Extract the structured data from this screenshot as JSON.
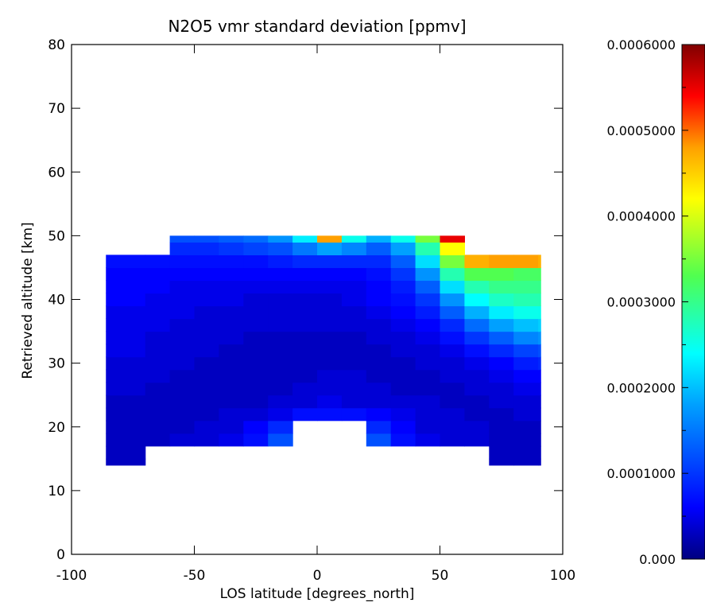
{
  "chart_data": [
    {
      "type": "heatmap",
      "title": "N2O5 vmr standard deviation [ppmv]",
      "xlabel": "LOS latitude [degrees_north]",
      "ylabel": "Retrieved altitude [km]",
      "xlim": [
        -100,
        100
      ],
      "ylim": [
        0,
        80
      ],
      "x_ticks": [
        "-100",
        "-50",
        "0",
        "50",
        "100"
      ],
      "x_tick_values": [
        -100,
        -50,
        0,
        50,
        100
      ],
      "y_ticks": [
        "0",
        "10",
        "20",
        "30",
        "40",
        "50",
        "60",
        "70",
        "80"
      ],
      "y_tick_values": [
        0,
        10,
        20,
        30,
        40,
        50,
        60,
        70,
        80
      ],
      "colorscale": "rainbow (dark blue to dark red)",
      "colorbar": {
        "range": [
          0,
          0.0006
        ],
        "labels": [
          "0.000",
          "0.0001000",
          "0.0002000",
          "0.0003000",
          "0.0004000",
          "0.0005000",
          "0.0006000"
        ],
        "label_values": [
          0,
          0.0001,
          0.0002,
          0.0003,
          0.0004,
          0.0005,
          0.0006
        ]
      },
      "lat": [
        -80,
        -70,
        -60,
        -50,
        -40,
        -30,
        -20,
        -10,
        0,
        10,
        20,
        30,
        40,
        50,
        60,
        70,
        80,
        90
      ],
      "lat_edges": [
        -86,
        -70,
        -60,
        -50,
        -40,
        -30,
        -20,
        -10,
        0,
        10,
        20,
        30,
        40,
        50,
        60,
        70,
        80,
        90,
        91
      ],
      "alt": [
        14,
        16,
        18,
        20,
        22,
        24,
        26,
        28,
        30,
        32,
        34,
        36,
        38,
        40,
        42,
        44,
        46,
        48,
        50
      ],
      "alt_edges": [
        14,
        15,
        17,
        19,
        21,
        23,
        25,
        27,
        29,
        31,
        33,
        35,
        37,
        39,
        41,
        43,
        45,
        47,
        49,
        50
      ],
      "values": [
        [
          3e-05,
          null,
          null,
          null,
          null,
          null,
          null,
          null,
          null,
          null,
          null,
          null,
          null,
          null,
          null,
          3e-05,
          3e-05,
          3e-05
        ],
        [
          3e-05,
          null,
          null,
          null,
          null,
          null,
          null,
          null,
          null,
          null,
          null,
          null,
          null,
          null,
          null,
          3e-05,
          3e-05,
          3e-05
        ],
        [
          3e-05,
          3e-05,
          4e-05,
          4e-05,
          5e-05,
          7e-05,
          0.00012,
          null,
          null,
          null,
          0.00012,
          7e-05,
          5e-05,
          4e-05,
          4e-05,
          3e-05,
          3e-05,
          3e-05
        ],
        [
          3e-05,
          3e-05,
          3e-05,
          4e-05,
          4e-05,
          6e-05,
          9e-05,
          null,
          null,
          null,
          9e-05,
          6e-05,
          4e-05,
          4e-05,
          4e-05,
          3e-05,
          3e-05,
          3e-05
        ],
        [
          3e-05,
          3e-05,
          3e-05,
          3e-05,
          4e-05,
          4e-05,
          5e-05,
          7e-05,
          7e-05,
          7e-05,
          6e-05,
          5e-05,
          4e-05,
          4e-05,
          3e-05,
          3e-05,
          4e-05,
          4e-05
        ],
        [
          3e-05,
          3e-05,
          3e-05,
          3e-05,
          3e-05,
          3e-05,
          4e-05,
          4e-05,
          5e-05,
          4e-05,
          4e-05,
          4e-05,
          4e-05,
          3e-05,
          3e-05,
          4e-05,
          4e-05,
          4e-05
        ],
        [
          4e-05,
          3e-05,
          3e-05,
          3e-05,
          3e-05,
          3e-05,
          3e-05,
          4e-05,
          4e-05,
          4e-05,
          4e-05,
          3e-05,
          3e-05,
          3e-05,
          4e-05,
          4e-05,
          5e-05,
          5e-05
        ],
        [
          4e-05,
          4e-05,
          3e-05,
          3e-05,
          3e-05,
          3e-05,
          3e-05,
          3e-05,
          4e-05,
          4e-05,
          3e-05,
          3e-05,
          3e-05,
          4e-05,
          4e-05,
          5e-05,
          6e-05,
          6e-05
        ],
        [
          4e-05,
          4e-05,
          4e-05,
          3e-05,
          3e-05,
          3e-05,
          3e-05,
          3e-05,
          3e-05,
          3e-05,
          3e-05,
          3e-05,
          4e-05,
          4e-05,
          5e-05,
          6e-05,
          8e-05,
          9e-05
        ],
        [
          5e-05,
          4e-05,
          4e-05,
          4e-05,
          3e-05,
          3e-05,
          3e-05,
          3e-05,
          3e-05,
          3e-05,
          3e-05,
          4e-05,
          4e-05,
          5e-05,
          7e-05,
          9e-05,
          0.00011,
          0.00012
        ],
        [
          5e-05,
          4e-05,
          4e-05,
          4e-05,
          4e-05,
          3e-05,
          3e-05,
          3e-05,
          3e-05,
          3e-05,
          4e-05,
          4e-05,
          5e-05,
          7e-05,
          0.0001,
          0.00013,
          0.00016,
          0.00017
        ],
        [
          5e-05,
          5e-05,
          4e-05,
          4e-05,
          4e-05,
          4e-05,
          4e-05,
          4e-05,
          4e-05,
          4e-05,
          4e-05,
          5e-05,
          6e-05,
          9e-05,
          0.00014,
          0.00018,
          0.0002,
          0.00021
        ],
        [
          5e-05,
          5e-05,
          5e-05,
          4e-05,
          4e-05,
          4e-05,
          4e-05,
          4e-05,
          4e-05,
          4e-05,
          5e-05,
          6e-05,
          8e-05,
          0.00013,
          0.00019,
          0.00023,
          0.00025,
          0.00025
        ],
        [
          6e-05,
          5e-05,
          5e-05,
          5e-05,
          5e-05,
          4e-05,
          4e-05,
          4e-05,
          4e-05,
          5e-05,
          6e-05,
          7e-05,
          0.0001,
          0.00017,
          0.00024,
          0.00027,
          0.00028,
          0.00028
        ],
        [
          6e-05,
          6e-05,
          5e-05,
          5e-05,
          5e-05,
          5e-05,
          5e-05,
          5e-05,
          5e-05,
          5e-05,
          6e-05,
          8e-05,
          0.00013,
          0.00022,
          0.00028,
          0.0003,
          0.0003,
          0.0003
        ],
        [
          6e-05,
          6e-05,
          6e-05,
          6e-05,
          6e-05,
          6e-05,
          6e-05,
          6e-05,
          6e-05,
          6e-05,
          7e-05,
          0.0001,
          0.00017,
          0.00028,
          0.00033,
          0.00033,
          0.00032,
          0.00032
        ],
        [
          7e-05,
          7e-05,
          7e-05,
          7e-05,
          7e-05,
          7e-05,
          8e-05,
          9e-05,
          9e-05,
          9e-05,
          9e-05,
          0.00013,
          0.00022,
          0.00035,
          0.00047,
          0.00048,
          0.00048,
          0.00047
        ],
        [
          null,
          null,
          9e-05,
          9e-05,
          0.0001,
          0.00011,
          0.00012,
          0.00015,
          0.00018,
          0.00016,
          0.00013,
          0.00018,
          0.00028,
          0.00042,
          null,
          null,
          null,
          null
        ],
        [
          null,
          null,
          0.00012,
          0.00012,
          0.00013,
          0.00014,
          0.00017,
          0.00023,
          0.00048,
          0.00025,
          0.00019,
          0.00025,
          0.00035,
          0.00055,
          null,
          null,
          null,
          null
        ]
      ]
    }
  ]
}
